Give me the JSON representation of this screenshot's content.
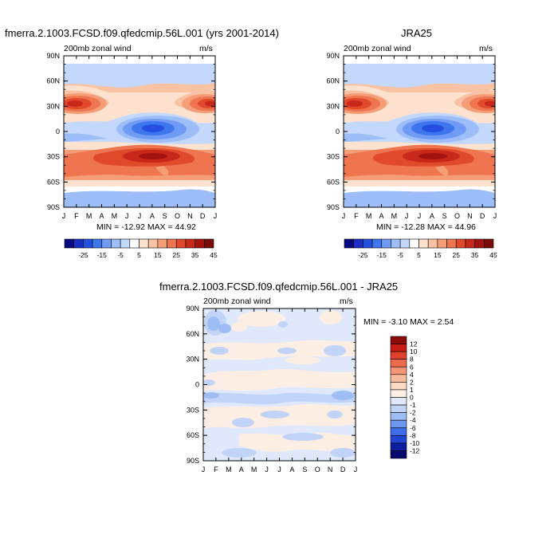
{
  "panels": [
    {
      "id": "left",
      "title": "fmerra.2.1003.FCSD.f09.qfedcmip.56L.001 (yrs 2001-2014)",
      "subtitle": "200mb zonal wind",
      "units": "m/s",
      "minmax": "MIN = -12.92 MAX =  44.92"
    },
    {
      "id": "right",
      "title": "JRA25",
      "subtitle": "200mb zonal wind",
      "units": "m/s",
      "minmax": "MIN = -12.28 MAX =  44.96"
    },
    {
      "id": "diff",
      "title": "fmerra.2.1003.FCSD.f09.qfedcmip.56L.001 - JRA25",
      "subtitle": "200mb zonal wind",
      "units": "m/s",
      "minmax": "MIN =  -3.10 MAX =   2.54"
    }
  ],
  "chart_data": [
    {
      "type": "heatmap",
      "title": "fmerra.2.1003.FCSD.f09.qfedcmip.56L.001 (yrs 2001-2014)",
      "x_ticks": [
        "J",
        "F",
        "M",
        "A",
        "M",
        "J",
        "J",
        "A",
        "S",
        "O",
        "N",
        "D",
        "J"
      ],
      "y_ticks": [
        "90N",
        "60N",
        "30N",
        "0",
        "30S",
        "60S",
        "90S"
      ],
      "colorbar_ticks": [
        "-25",
        "-15",
        "-5",
        "5",
        "15",
        "25",
        "35",
        "45"
      ],
      "colorbar_colors": [
        "#0a0a80",
        "#1a2dc7",
        "#2350e0",
        "#3f76ee",
        "#6f9bf4",
        "#9cbdf8",
        "#c4d8fb",
        "#ffffff",
        "#fde2cf",
        "#f9c2a3",
        "#f59d77",
        "#ee754f",
        "#e0492c",
        "#c8281a",
        "#a2120f",
        "#7a0c08"
      ],
      "field": "200mb zonal wind climatology, latitude vs month",
      "min": -12.92,
      "max": 44.92
    },
    {
      "type": "heatmap",
      "title": "JRA25",
      "x_ticks": [
        "J",
        "F",
        "M",
        "A",
        "M",
        "J",
        "J",
        "A",
        "S",
        "O",
        "N",
        "D",
        "J"
      ],
      "y_ticks": [
        "90N",
        "60N",
        "30N",
        "0",
        "30S",
        "60S",
        "90S"
      ],
      "colorbar_ticks": [
        "-25",
        "-15",
        "-5",
        "5",
        "15",
        "25",
        "35",
        "45"
      ],
      "field": "200mb zonal wind climatology, latitude vs month",
      "min": -12.28,
      "max": 44.96
    },
    {
      "type": "heatmap",
      "title": "fmerra.2.1003.FCSD.f09.qfedcmip.56L.001 - JRA25",
      "x_ticks": [
        "J",
        "F",
        "M",
        "A",
        "M",
        "J",
        "J",
        "A",
        "S",
        "O",
        "N",
        "D",
        "J"
      ],
      "y_ticks": [
        "90N",
        "60N",
        "30N",
        "0",
        "30S",
        "60S",
        "90S"
      ],
      "colorbar_ticks": [
        "12",
        "10",
        "8",
        "6",
        "4",
        "2",
        "1",
        "0",
        "-1",
        "-2",
        "-4",
        "-6",
        "-8",
        "-10",
        "-12"
      ],
      "colorbar_colors": [
        "#8b0a0a",
        "#c71c16",
        "#e0402c",
        "#ee6a4c",
        "#f59574",
        "#f9bb9e",
        "#fcd9c5",
        "#fdeee3",
        "#dfe9fb",
        "#c1d4f8",
        "#9ebdf5",
        "#6e97f0",
        "#3f6ee8",
        "#1f45d2",
        "#0d1fa0",
        "#080a6e"
      ],
      "field": "difference in 200mb zonal wind",
      "min": -3.1,
      "max": 2.54
    }
  ]
}
